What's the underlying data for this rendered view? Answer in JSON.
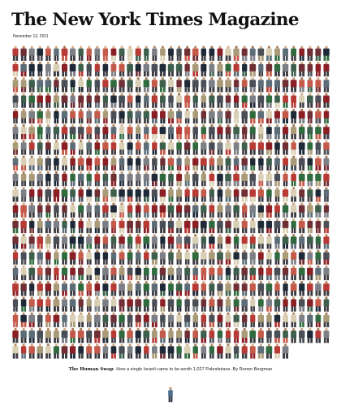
{
  "masthead": {
    "title": "The New York Times Magazine"
  },
  "issue": {
    "date": "November 13, 2011"
  },
  "cover_art": {
    "icon": "crowd-of-figures",
    "palette": [
      "#8a1f26",
      "#b83a35",
      "#2f6b3e",
      "#5d6d78",
      "#4a4e56",
      "#a99a78",
      "#d8cfb4",
      "#6f2f35",
      "#3d5f4c",
      "#c45a4a",
      "#7d7f86",
      "#1f2a38"
    ],
    "lone_figure_icon": "single-figure",
    "lone_figure_color": "#4a6f8c"
  },
  "story": {
    "title": "The Human Swap",
    "dek": "How a single Israeli came to be worth 1,027 Palestinians. By Ronen Bergman"
  }
}
